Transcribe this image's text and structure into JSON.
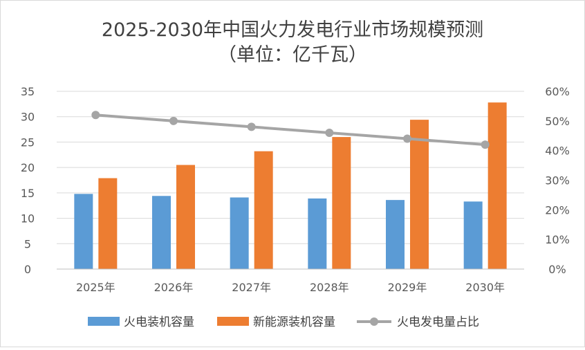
{
  "chart_data": {
    "type": "bar",
    "title": "2025-2030年中国火力发电行业市场规模预测",
    "subtitle": "（单位：亿千瓦）",
    "categories": [
      "2025年",
      "2026年",
      "2027年",
      "2028年",
      "2029年",
      "2030年"
    ],
    "series": [
      {
        "name": "火电装机容量",
        "kind": "bar",
        "axis": "left",
        "color": "#5B9BD5",
        "values": [
          14.8,
          14.4,
          14.1,
          13.9,
          13.6,
          13.3
        ]
      },
      {
        "name": "新能源装机容量",
        "kind": "bar",
        "axis": "left",
        "color": "#ED7D31",
        "values": [
          17.9,
          20.5,
          23.2,
          26.0,
          29.4,
          32.8
        ]
      },
      {
        "name": "火电发电量占比",
        "kind": "line",
        "axis": "right",
        "color": "#A5A5A5",
        "values": [
          52,
          50,
          48,
          46,
          44,
          42
        ]
      }
    ],
    "y_left": {
      "min": 0,
      "max": 35,
      "step": 5,
      "ticks": [
        "0",
        "5",
        "10",
        "15",
        "20",
        "25",
        "30",
        "35"
      ]
    },
    "y_right": {
      "min": 0,
      "max": 60,
      "step": 10,
      "ticks": [
        "0%",
        "10%",
        "20%",
        "30%",
        "40%",
        "50%",
        "60%"
      ]
    },
    "grid": true,
    "legend_position": "bottom"
  }
}
